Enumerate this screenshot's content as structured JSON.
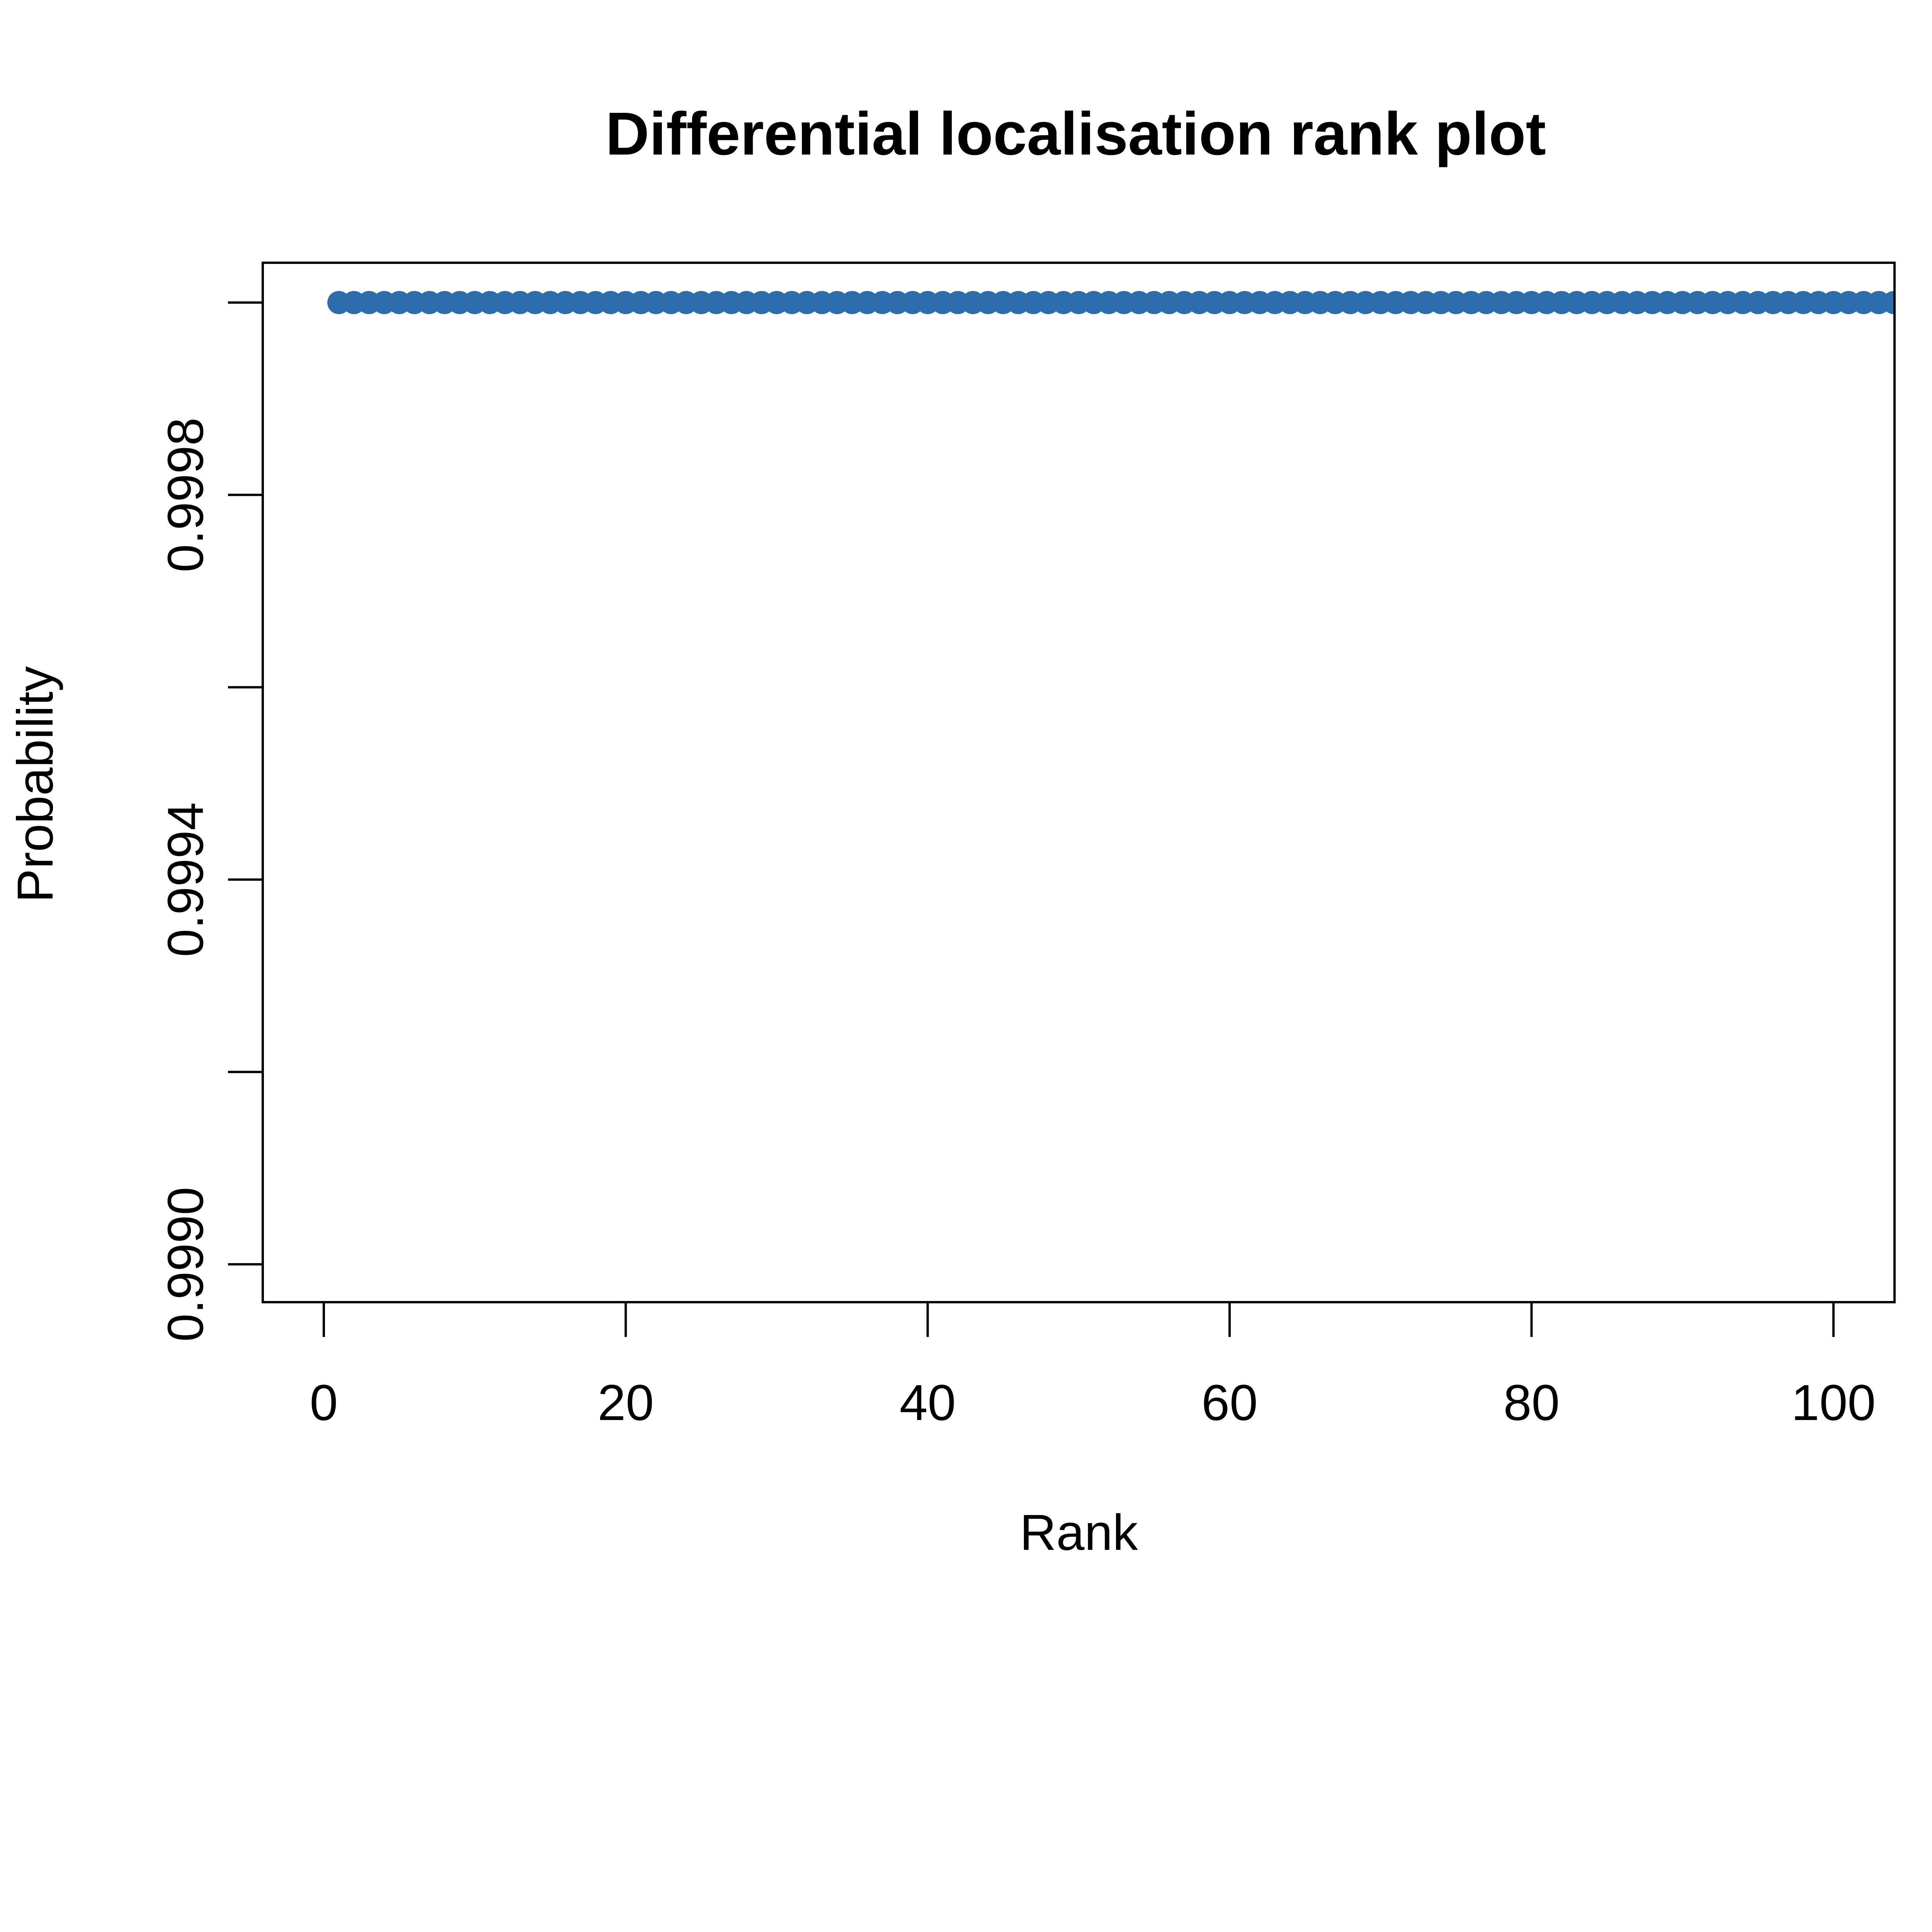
{
  "chart_data": {
    "type": "scatter",
    "title": "Differential localisation rank plot",
    "xlabel": "Rank",
    "ylabel": "Probability",
    "xlim": [
      -4,
      104
    ],
    "ylim": [
      0.99893,
      1.0
    ],
    "x_ticks": [
      0,
      20,
      40,
      60,
      80,
      100
    ],
    "x_tick_labels": [
      "0",
      "20",
      "40",
      "60",
      "80",
      "100"
    ],
    "y_ticks": [
      0.999,
      0.9992,
      0.9994,
      0.9996,
      0.9998,
      1.0
    ],
    "y_tick_labels": [
      "0.9990",
      "",
      "0.9994",
      "",
      "0.9998",
      ""
    ],
    "grid": false,
    "point_color": "#2E6DAD",
    "series": [
      {
        "x_start": 1,
        "x_end": 104,
        "y": 1.0
      }
    ]
  }
}
